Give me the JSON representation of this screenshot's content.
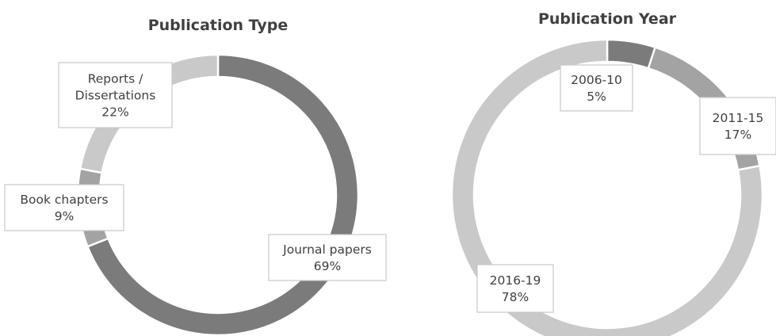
{
  "chart_data": [
    {
      "type": "pie",
      "title": "Publication Type",
      "slices": [
        {
          "label": "Journal papers",
          "value": 69,
          "display": "69%",
          "color": "#7b7b7b"
        },
        {
          "label": "Book chapters",
          "value": 9,
          "display": "9%",
          "color": "#a3a3a3"
        },
        {
          "label": "Reports / Dissertations",
          "label_lines": [
            "Reports /",
            "Dissertations"
          ],
          "value": 22,
          "display": "22%",
          "color": "#c9c9c9"
        }
      ],
      "legend": "none",
      "style": "donut"
    },
    {
      "type": "pie",
      "title": "Publication Year",
      "slices": [
        {
          "label": "2006-10",
          "value": 5,
          "display": "5%",
          "color": "#7b7b7b"
        },
        {
          "label": "2011-15",
          "value": 17,
          "display": "17%",
          "color": "#a3a3a3"
        },
        {
          "label": "2016-19",
          "value": 78,
          "display": "78%",
          "color": "#c9c9c9"
        }
      ],
      "legend": "none",
      "style": "donut"
    }
  ]
}
